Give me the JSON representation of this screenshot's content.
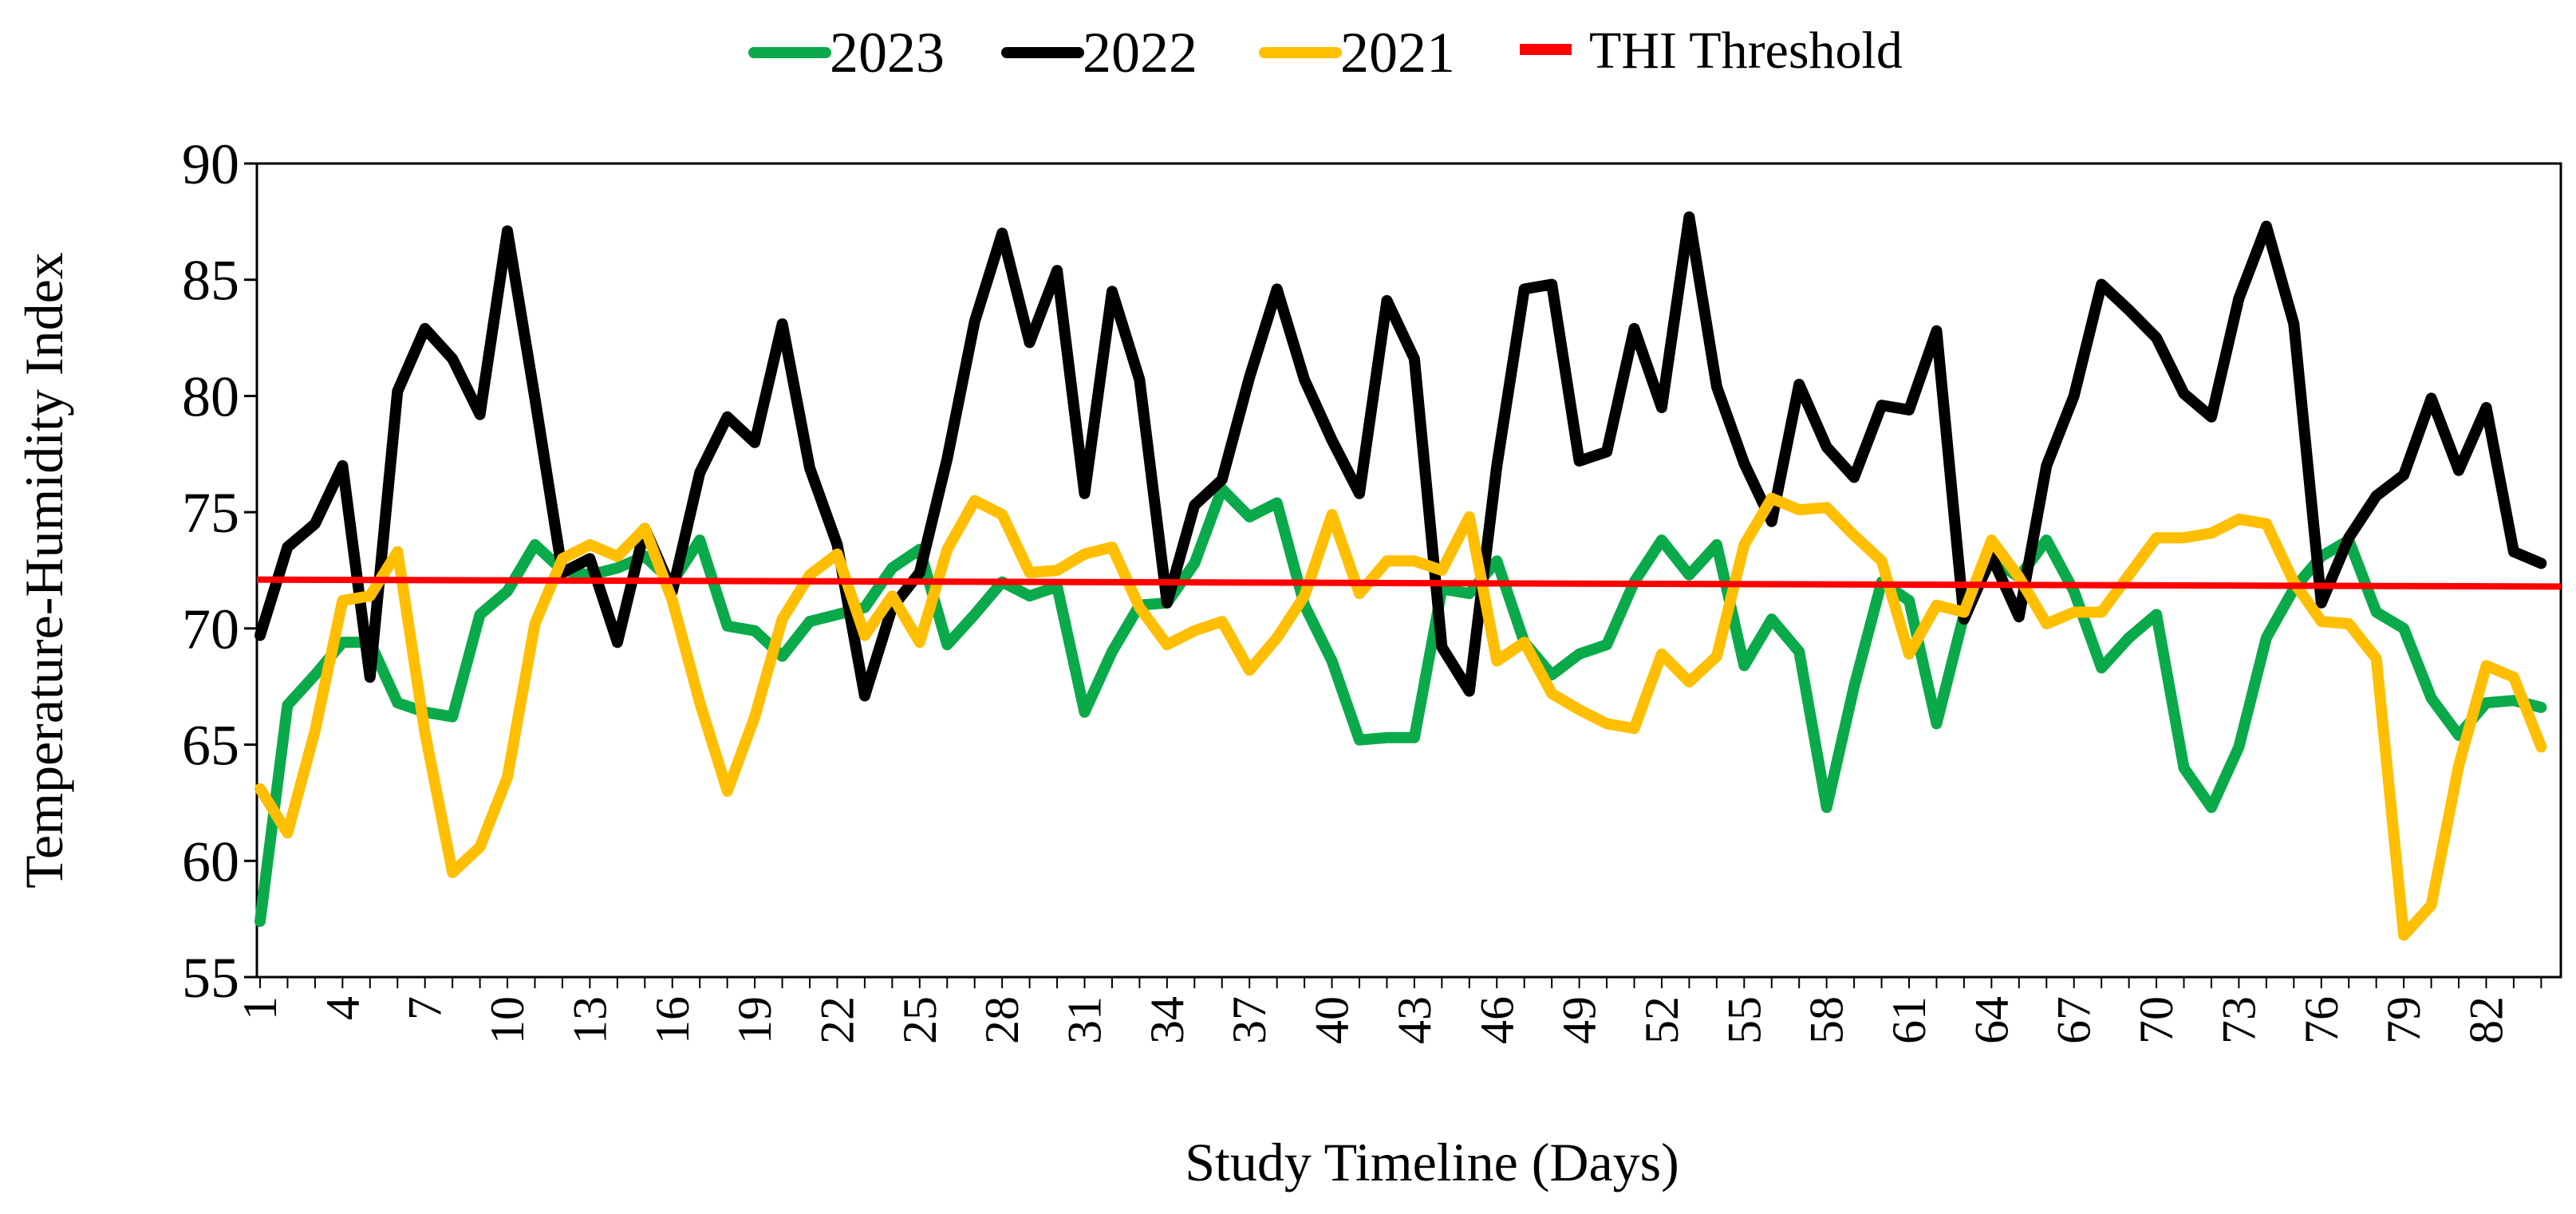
{
  "chart_data": {
    "type": "line",
    "title": "",
    "xlabel": "Study Timeline (Days)",
    "ylabel": "Temperature-Humidity Index",
    "ylim": [
      55,
      90
    ],
    "yticks": [
      55,
      60,
      65,
      70,
      75,
      80,
      85,
      90
    ],
    "xlim": [
      1,
      84
    ],
    "xticks": [
      1,
      4,
      7,
      10,
      13,
      16,
      19,
      22,
      25,
      28,
      31,
      34,
      37,
      40,
      43,
      46,
      49,
      52,
      55,
      58,
      61,
      64,
      67,
      70,
      73,
      76,
      79,
      82
    ],
    "legend_position": "top",
    "series": [
      {
        "name": "2023",
        "color": "#0aaa4a",
        "values": [
          57.4,
          66.7,
          68.0,
          69.4,
          69.4,
          66.8,
          66.4,
          66.2,
          70.6,
          71.6,
          73.6,
          72.5,
          72.3,
          72.6,
          73.1,
          72.0,
          73.8,
          70.1,
          69.9,
          68.8,
          70.3,
          70.6,
          70.9,
          72.6,
          73.4,
          69.3,
          70.6,
          72.0,
          71.4,
          71.8,
          66.4,
          69.0,
          71.0,
          71.1,
          72.8,
          76.0,
          74.8,
          75.4,
          71.0,
          68.6,
          65.2,
          65.3,
          65.3,
          71.7,
          71.5,
          72.9,
          69.4,
          68.0,
          68.9,
          69.3,
          72.0,
          73.8,
          72.3,
          73.6,
          68.4,
          70.4,
          69.0,
          62.3,
          67.5,
          72.0,
          71.2,
          65.9,
          70.6,
          73.0,
          72.2,
          73.8,
          71.6,
          68.3,
          69.6,
          70.6,
          64.0,
          62.3,
          64.9,
          69.6,
          71.7,
          73.1,
          73.8,
          70.7,
          70.0,
          67.0,
          65.4,
          66.8,
          66.9,
          66.6
        ]
      },
      {
        "name": "2022",
        "color": "#000000",
        "values": [
          69.7,
          73.5,
          74.5,
          77.0,
          67.9,
          80.2,
          82.9,
          81.6,
          79.2,
          87.1,
          79.9,
          72.4,
          73.0,
          69.4,
          74.3,
          71.6,
          76.7,
          79.1,
          78.0,
          83.1,
          76.9,
          73.6,
          67.1,
          70.9,
          72.4,
          77.3,
          83.2,
          87.0,
          82.3,
          85.4,
          75.8,
          84.5,
          80.7,
          71.1,
          75.3,
          76.4,
          80.8,
          84.6,
          80.7,
          78.1,
          75.8,
          84.1,
          81.6,
          69.2,
          67.3,
          77.0,
          84.6,
          84.8,
          77.2,
          77.6,
          82.9,
          79.5,
          87.7,
          80.4,
          77.1,
          74.6,
          80.5,
          77.8,
          76.5,
          79.6,
          79.4,
          82.8,
          70.4,
          73.1,
          70.5,
          77.0,
          80.0,
          84.8,
          83.7,
          82.5,
          80.1,
          79.1,
          84.2,
          87.3,
          83.1,
          71.1,
          73.9,
          75.7,
          76.6,
          79.9,
          76.8,
          79.5,
          73.3,
          72.8
        ]
      },
      {
        "name": "2021",
        "color": "#ffbf00",
        "values": [
          63.1,
          61.2,
          65.6,
          71.2,
          71.4,
          73.3,
          65.5,
          59.5,
          60.6,
          63.6,
          70.2,
          73.0,
          73.6,
          73.1,
          74.3,
          71.2,
          66.8,
          63.0,
          66.2,
          70.4,
          72.3,
          73.2,
          69.7,
          71.4,
          69.4,
          73.4,
          75.5,
          74.9,
          72.4,
          72.5,
          73.2,
          73.5,
          70.9,
          69.3,
          69.9,
          70.3,
          68.2,
          69.6,
          71.4,
          74.9,
          71.5,
          72.9,
          72.9,
          72.5,
          74.8,
          68.6,
          69.4,
          67.2,
          66.5,
          65.9,
          65.7,
          68.9,
          67.7,
          68.8,
          73.6,
          75.6,
          75.1,
          75.2,
          74.0,
          72.9,
          68.9,
          71.0,
          70.7,
          73.8,
          72.2,
          70.2,
          70.7,
          70.7,
          72.3,
          73.9,
          73.9,
          74.1,
          74.7,
          74.5,
          72.0,
          70.3,
          70.2,
          68.7,
          56.8,
          58.1,
          64.1,
          68.4,
          67.9,
          64.9
        ]
      },
      {
        "name": "THI Threshold",
        "color": "#ff0000",
        "values": [
          72.1,
          71.8
        ]
      }
    ]
  }
}
